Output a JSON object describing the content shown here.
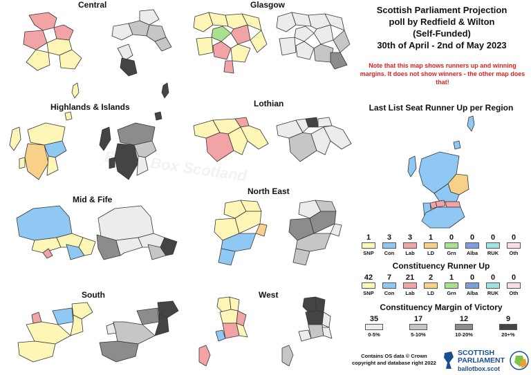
{
  "title": {
    "line1": "Scottish Parliament Projection",
    "line2": "poll by Redfield & Wilton",
    "line3": "(Self-Funded)",
    "line4": "30th of April - 2nd of May 2023"
  },
  "note": "Note that this map shows runners up and winning margins. It does not show winners - the other map does that!",
  "watermark": "Ballot Box Scotland",
  "regions": [
    {
      "id": "central",
      "name": "Central"
    },
    {
      "id": "glasgow",
      "name": "Glasgow"
    },
    {
      "id": "highlands",
      "name": "Highlands & Islands"
    },
    {
      "id": "lothian",
      "name": "Lothian"
    },
    {
      "id": "midfife",
      "name": "Mid & Fife"
    },
    {
      "id": "northeast",
      "name": "North East"
    },
    {
      "id": "south",
      "name": "South"
    },
    {
      "id": "west",
      "name": "West"
    }
  ],
  "colors": {
    "SNP": "#fdf6b7",
    "Con": "#8fc9f3",
    "Lab": "#f2a3a6",
    "LD": "#f9d08a",
    "Grn": "#a8e28f",
    "Alba": "#7d9ddd",
    "RUK": "#9fe3e0",
    "Oth": "#f9dce4",
    "margin_0_5": "#ececec",
    "margin_5_10": "#c6c6c6",
    "margin_10_20": "#8c8c8c",
    "margin_20_plus": "#444444"
  },
  "list_runner_up": {
    "heading": "Last List Seat Runner Up per Region",
    "items": [
      {
        "party": "SNP",
        "count": "1"
      },
      {
        "party": "Con",
        "count": "3"
      },
      {
        "party": "Lab",
        "count": "3"
      },
      {
        "party": "LD",
        "count": "1"
      },
      {
        "party": "Grn",
        "count": "0"
      },
      {
        "party": "Alba",
        "count": "0"
      },
      {
        "party": "RUK",
        "count": "0"
      },
      {
        "party": "Oth",
        "count": "0"
      }
    ]
  },
  "constituency_runner_up": {
    "heading": "Constituency Runner Up",
    "items": [
      {
        "party": "SNP",
        "count": "42"
      },
      {
        "party": "Con",
        "count": "7"
      },
      {
        "party": "Lab",
        "count": "21"
      },
      {
        "party": "LD",
        "count": "2"
      },
      {
        "party": "Grn",
        "count": "1"
      },
      {
        "party": "Alba",
        "count": "0"
      },
      {
        "party": "RUK",
        "count": "0"
      },
      {
        "party": "Oth",
        "count": "0"
      }
    ]
  },
  "margin_of_victory": {
    "heading": "Constituency Margin of Victory",
    "items": [
      {
        "label": "0-5%",
        "count": "35",
        "color_key": "margin_0_5"
      },
      {
        "label": "5-10%",
        "count": "17",
        "color_key": "margin_5_10"
      },
      {
        "label": "10-20%",
        "count": "12",
        "color_key": "margin_10_20"
      },
      {
        "label": "20+%",
        "count": "9",
        "color_key": "margin_20_plus"
      }
    ]
  },
  "credit": {
    "line1": "Contains OS data © Crown",
    "line2": "copyright and database right 2022"
  },
  "logo": {
    "line1": "SCOTTISH",
    "line2": "PARLIAMENT",
    "url": "ballotbox.scot"
  }
}
